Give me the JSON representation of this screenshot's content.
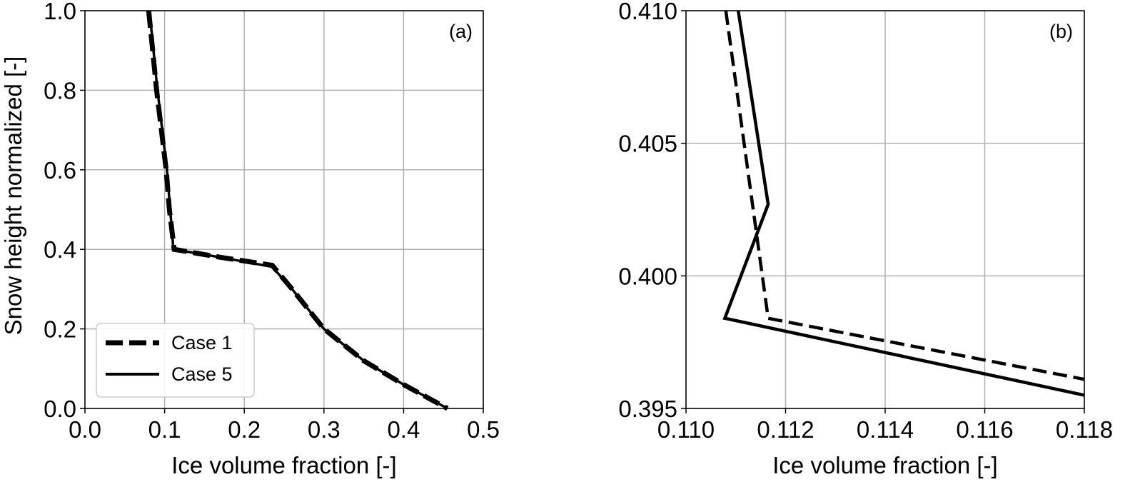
{
  "shared": {
    "ylabel": "Snow height normalized [-]"
  },
  "legend": [
    {
      "label": "Case 1",
      "style": "dashed"
    },
    {
      "label": "Case 5",
      "style": "solid"
    }
  ],
  "chart_data": [
    {
      "type": "line",
      "panel_label": "(a)",
      "xlabel": "Ice volume fraction [-]",
      "ylabel": "Snow height normalized [-]",
      "xlim": [
        0.0,
        0.5
      ],
      "ylim": [
        0.0,
        1.0
      ],
      "xticks": [
        "0.0",
        "0.1",
        "0.2",
        "0.3",
        "0.4",
        "0.5"
      ],
      "yticks": [
        "0.0",
        "0.2",
        "0.4",
        "0.6",
        "0.8",
        "1.0"
      ],
      "grid": true,
      "legend_position": "lower-left",
      "series": [
        {
          "name": "Case 1",
          "line_style": "dashed",
          "color": "#000000",
          "points": [
            [
              0.08,
              1.0
            ],
            [
              0.085,
              0.9
            ],
            [
              0.09,
              0.8
            ],
            [
              0.096,
              0.7
            ],
            [
              0.102,
              0.6
            ],
            [
              0.106,
              0.5
            ],
            [
              0.112,
              0.4
            ],
            [
              0.17,
              0.38
            ],
            [
              0.235,
              0.36
            ],
            [
              0.26,
              0.3
            ],
            [
              0.3,
              0.2
            ],
            [
              0.35,
              0.12
            ],
            [
              0.4,
              0.06
            ],
            [
              0.455,
              0.0
            ]
          ]
        },
        {
          "name": "Case 5",
          "line_style": "solid",
          "color": "#000000",
          "points": [
            [
              0.081,
              1.0
            ],
            [
              0.086,
              0.9
            ],
            [
              0.091,
              0.8
            ],
            [
              0.097,
              0.7
            ],
            [
              0.103,
              0.6
            ],
            [
              0.107,
              0.5
            ],
            [
              0.111,
              0.4
            ],
            [
              0.17,
              0.38
            ],
            [
              0.235,
              0.356
            ],
            [
              0.26,
              0.3
            ],
            [
              0.3,
              0.2
            ],
            [
              0.35,
              0.12
            ],
            [
              0.4,
              0.06
            ],
            [
              0.455,
              0.0
            ]
          ]
        }
      ]
    },
    {
      "type": "line",
      "panel_label": "(b)",
      "xlabel": "Ice volume fraction [-]",
      "ylabel": "",
      "xlim": [
        0.11,
        0.118
      ],
      "ylim": [
        0.395,
        0.41
      ],
      "xticks": [
        "0.110",
        "0.112",
        "0.114",
        "0.116",
        "0.118"
      ],
      "yticks": [
        "0.395",
        "0.400",
        "0.405",
        "0.410"
      ],
      "grid": true,
      "series": [
        {
          "name": "Case 1",
          "line_style": "dashed",
          "color": "#000000",
          "points": [
            [
              0.1108,
              0.41
            ],
            [
              0.11165,
              0.3984
            ],
            [
              0.118,
              0.3961
            ]
          ]
        },
        {
          "name": "Case 5",
          "line_style": "solid",
          "color": "#000000",
          "points": [
            [
              0.11105,
              0.41
            ],
            [
              0.11165,
              0.4027
            ],
            [
              0.11078,
              0.3984
            ],
            [
              0.118,
              0.3955
            ]
          ]
        }
      ]
    }
  ]
}
